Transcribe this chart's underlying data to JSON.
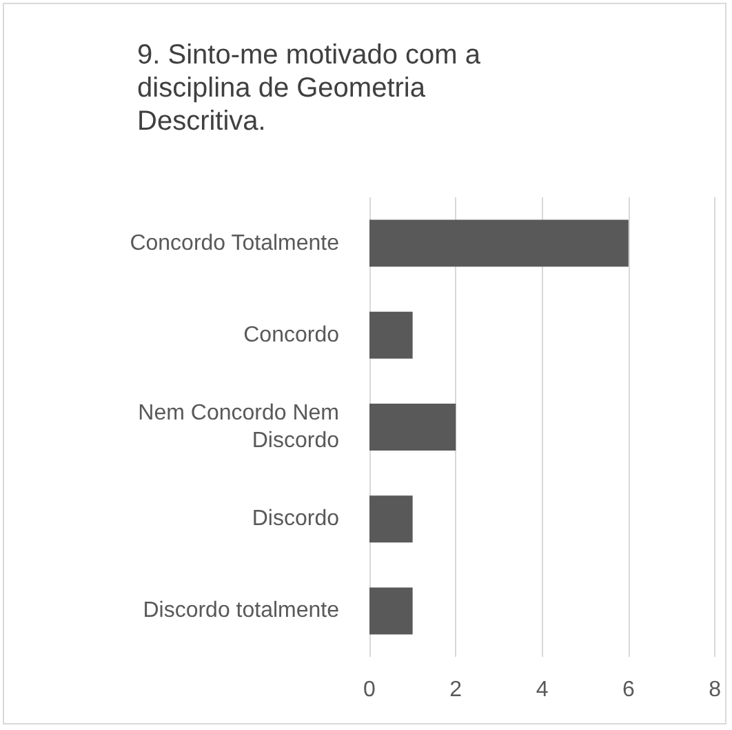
{
  "chart_data": {
    "type": "bar",
    "orientation": "horizontal",
    "title": "9. Sinto-me motivado com a disciplina de Geometria Descritiva.",
    "categories": [
      "Concordo Totalmente",
      "Concordo",
      "Nem Concordo Nem Discordo",
      "Discordo",
      "Discordo totalmente"
    ],
    "values": [
      6,
      1,
      2,
      1,
      1
    ],
    "color": "#595959",
    "xlim": [
      0,
      8
    ],
    "xticks": [
      0,
      2,
      4,
      6,
      8
    ],
    "grid": "x",
    "legend": false
  }
}
